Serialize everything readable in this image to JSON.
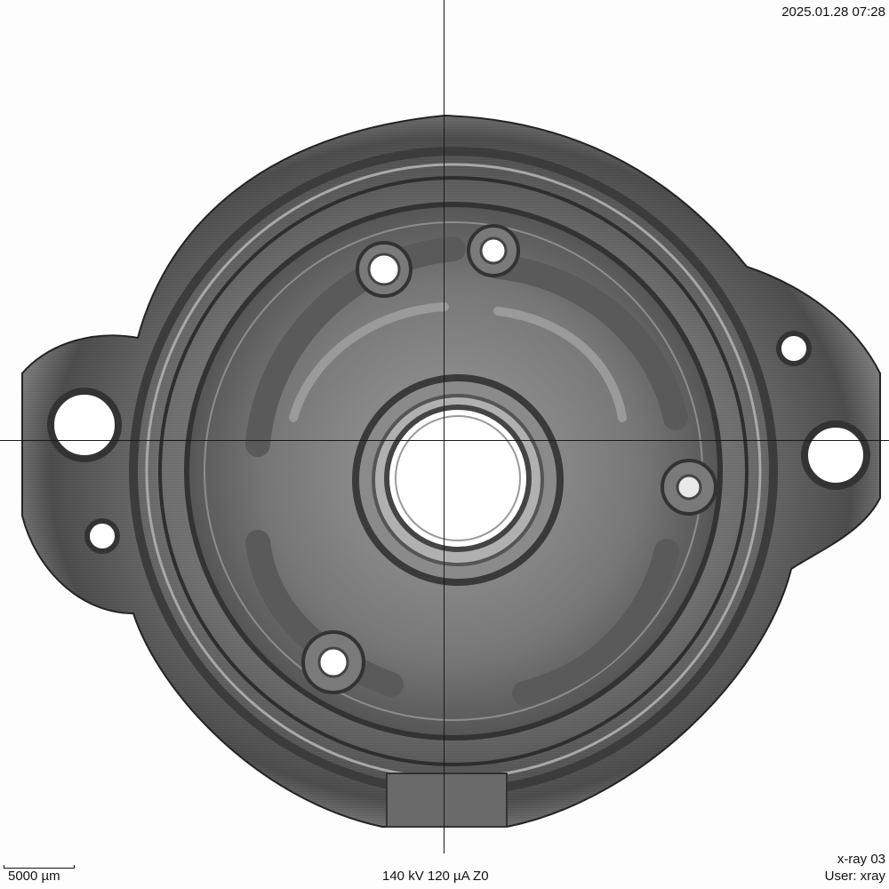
{
  "overlay": {
    "timestamp": "2025.01.28 07:28",
    "exposure": "140 kV 120 µA Z0",
    "scale_label": "5000 µm",
    "device_name": "x-ray 03",
    "user_label": "User: xray"
  },
  "colors": {
    "background": "#fdfdfd",
    "metal_dark": "#3a3a3a",
    "metal_mid": "#7a7a7a",
    "metal_light": "#b5b5b5",
    "crosshair": "#1a1a1a"
  }
}
